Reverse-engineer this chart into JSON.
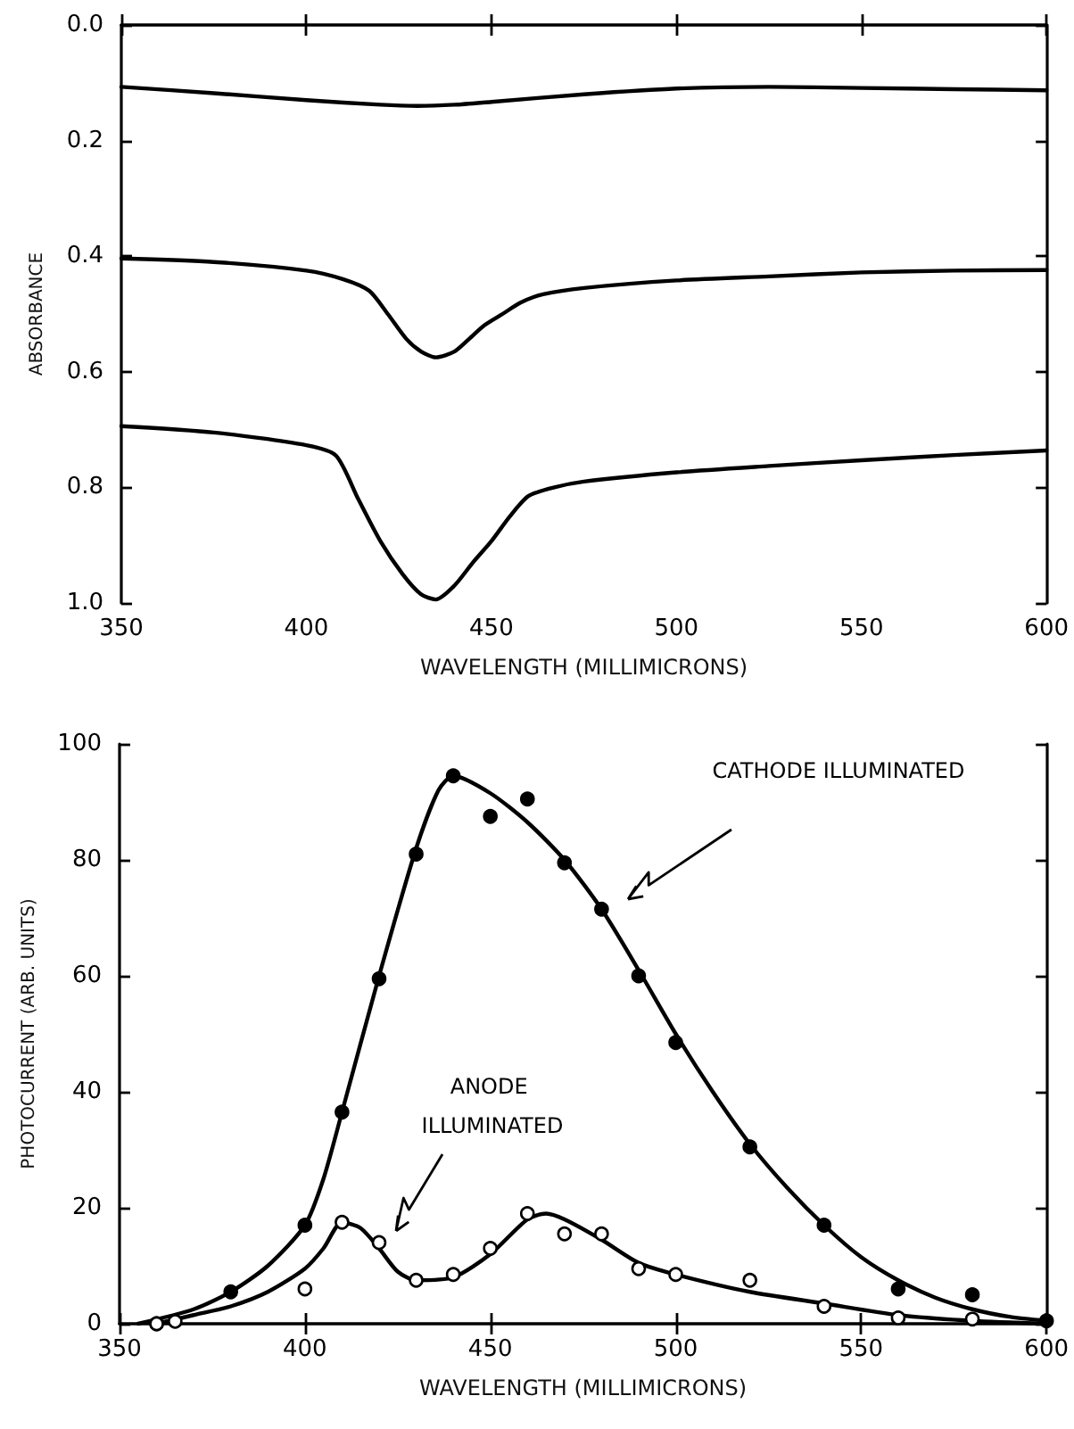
{
  "chart_data": [
    {
      "type": "line",
      "xlabel": "WAVELENGTH (MILLIMICRONS)",
      "ylabel": "ABSORBANCE",
      "marker": "none",
      "xlim": [
        350,
        600
      ],
      "xticks": [
        350,
        400,
        450,
        500,
        550,
        600
      ],
      "ylim": [
        1.0,
        0.0
      ],
      "yticks": [
        {
          "value": 0.0,
          "label": "0.0"
        },
        {
          "value": 0.2,
          "label": "0.2"
        },
        {
          "value": 0.4,
          "label": "0.4"
        },
        {
          "value": 0.6,
          "label": "0.6"
        },
        {
          "value": 0.8,
          "label": "0.8"
        },
        {
          "value": 1.0,
          "label": "1.0"
        }
      ],
      "series": [
        {
          "color": "#000000",
          "x": [
            350,
            375,
            400,
            420,
            430,
            440,
            450,
            475,
            500,
            525,
            550,
            575,
            600
          ],
          "values": [
            0.107,
            0.118,
            0.13,
            0.138,
            0.14,
            0.138,
            0.133,
            0.12,
            0.11,
            0.107,
            0.109,
            0.111,
            0.113
          ]
        },
        {
          "color": "#000000",
          "x": [
            350,
            375,
            400,
            410,
            417,
            422,
            427,
            431,
            435,
            440,
            444,
            448,
            453,
            458,
            464,
            475,
            500,
            525,
            550,
            575,
            600
          ],
          "values": [
            0.404,
            0.41,
            0.425,
            0.44,
            0.46,
            0.5,
            0.543,
            0.565,
            0.575,
            0.565,
            0.543,
            0.52,
            0.5,
            0.48,
            0.466,
            0.455,
            0.442,
            0.435,
            0.428,
            0.425,
            0.424
          ]
        },
        {
          "color": "#000000",
          "x": [
            350,
            375,
            400,
            408,
            414,
            420,
            426,
            431,
            435,
            440,
            445,
            450,
            455,
            460,
            467,
            475,
            500,
            525,
            550,
            575,
            600
          ],
          "values": [
            0.694,
            0.705,
            0.727,
            0.745,
            0.82,
            0.893,
            0.95,
            0.985,
            0.994,
            0.97,
            0.93,
            0.893,
            0.85,
            0.815,
            0.8,
            0.79,
            0.774,
            0.763,
            0.753,
            0.744,
            0.736
          ]
        }
      ]
    },
    {
      "type": "scatter",
      "xlabel": "WAVELENGTH (MILLIMICRONS)",
      "ylabel": "PHOTOCURRENT (ARB. UNITS)",
      "marker": "circle",
      "xlim": [
        350,
        600
      ],
      "xticks": [
        350,
        400,
        450,
        500,
        550,
        600
      ],
      "ylim": [
        0,
        100
      ],
      "yticks": [
        0,
        20,
        40,
        60,
        80,
        100
      ],
      "annotations": [
        "CATHODE ILLUMINATED",
        "ANODE ILLUMINATED"
      ],
      "series": [
        {
          "color": "#000000",
          "x": [
            360,
            380,
            400,
            410,
            420,
            430,
            440,
            450,
            460,
            470,
            480,
            490,
            500,
            520,
            540,
            560,
            580,
            600
          ],
          "values": [
            0,
            5.5,
            17,
            36.5,
            59.5,
            81,
            94.5,
            87.5,
            90.5,
            79.5,
            71.5,
            60,
            48.5,
            30.5,
            17,
            6,
            5,
            0.5
          ]
        },
        {
          "type": "line",
          "marker": "none",
          "color": "#000000",
          "x": [
            355,
            370,
            380,
            390,
            400,
            405,
            410,
            420,
            430,
            436,
            440,
            450,
            460,
            470,
            480,
            490,
            500,
            510,
            520,
            530,
            540,
            550,
            560,
            570,
            580,
            590,
            600
          ],
          "values": [
            0,
            2.5,
            5.5,
            10,
            17,
            25,
            36.5,
            60,
            82,
            92,
            94.5,
            91.5,
            86.5,
            80,
            71.5,
            61,
            50,
            40,
            31,
            23.5,
            17,
            11.5,
            7.5,
            4.5,
            2.5,
            1.2,
            0.5
          ]
        },
        {
          "color": "#ffffff",
          "x": [
            360,
            365,
            400,
            410,
            420,
            430,
            440,
            450,
            460,
            470,
            480,
            490,
            500,
            520,
            540,
            560,
            580
          ],
          "values": [
            0,
            0.4,
            6,
            17.5,
            14,
            7.5,
            8.5,
            13,
            19,
            15.5,
            15.5,
            9.5,
            8.5,
            7.5,
            3,
            1,
            0.8
          ]
        },
        {
          "type": "line",
          "marker": "none",
          "color": "#000000",
          "x": [
            360,
            370,
            380,
            390,
            400,
            405,
            410,
            415,
            420,
            425,
            430,
            440,
            450,
            460,
            465,
            470,
            480,
            490,
            500,
            520,
            540,
            560,
            580,
            600
          ],
          "values": [
            0,
            1.5,
            3,
            5.5,
            9.5,
            13,
            17.5,
            16.5,
            13,
            9,
            7.5,
            8,
            12,
            18,
            19,
            18,
            14.5,
            10.5,
            8.5,
            5.5,
            3.5,
            1.5,
            0.5,
            0
          ]
        }
      ]
    }
  ]
}
